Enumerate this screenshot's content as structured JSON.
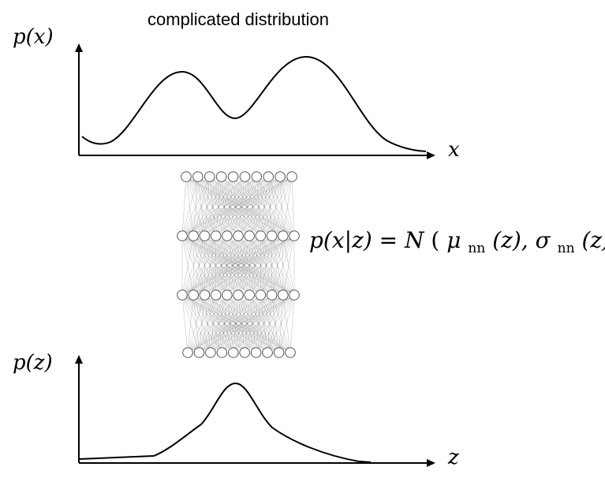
{
  "figure": {
    "title": "complicated distribution",
    "top_ylabel": "p(x)",
    "top_xlabel": "x",
    "bottom_ylabel": "p(z)",
    "bottom_xlabel": "z",
    "equation": {
      "lhs": "p(x|z) = ",
      "N": "N",
      "open": "(",
      "mu": "μ",
      "mu_sub": "nn",
      "mu_arg": "(z), ",
      "sigma": "σ",
      "sigma_sub": "nn",
      "sigma_arg": "(z))"
    }
  },
  "network": {
    "layers": [
      10,
      11,
      11,
      10
    ]
  },
  "colors": {
    "ink": "#000000",
    "neuron_fill": "#ffffff",
    "neuron_stroke": "#555555"
  }
}
